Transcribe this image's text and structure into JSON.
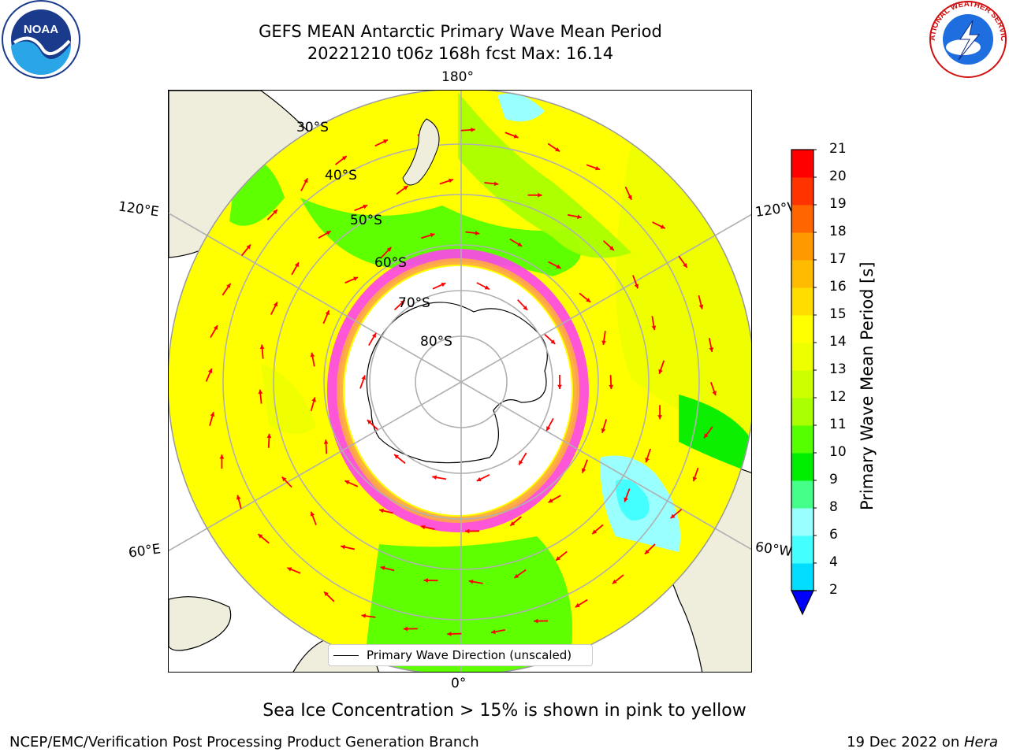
{
  "header": {
    "title_line1": "GEFS MEAN Antarctic Primary Wave Mean Period",
    "title_line2": "20221210 t06z 168h fcst   Max: 16.14"
  },
  "logos": {
    "left": "NOAA",
    "right": "NATIONAL WEATHER SERVICE"
  },
  "map": {
    "projection": "south-polar-stereographic",
    "lon_labels": {
      "top": "180°",
      "upper_left": "120°E",
      "upper_right": "120°W",
      "lower_left": "60°E",
      "lower_right": "60°W",
      "bottom": "0°"
    },
    "lat_labels": [
      "30°S",
      "40°S",
      "50°S",
      "60°S",
      "70°S",
      "80°S"
    ],
    "legend_label": "Primary Wave Direction (unscaled)",
    "colors": {
      "land": "#efeddc",
      "ice": "#ffffff",
      "arrow": "#ff0000",
      "grid": "#b0b0b0"
    }
  },
  "colorbar": {
    "label": "Primary Wave Mean Period [s]",
    "ticks": [
      "2",
      "4",
      "6",
      "8",
      "9",
      "10",
      "11",
      "12",
      "13",
      "14",
      "15",
      "16",
      "17",
      "18",
      "19",
      "20",
      "21"
    ],
    "colors": [
      "#0063ff",
      "#00ddff",
      "#44ffff",
      "#99ffff",
      "#44ff88",
      "#00ee00",
      "#55ff00",
      "#aaff00",
      "#ccff00",
      "#eeff00",
      "#ffff00",
      "#ffdd00",
      "#ffbb00",
      "#ff9900",
      "#ff6600",
      "#ff3300",
      "#ff0000"
    ],
    "under_color": "#0000ff"
  },
  "subtitle": "Sea Ice Concentration > 15% is shown in pink to yellow",
  "footer": {
    "left": "NCEP/EMC/Verification Post Processing Product Generation Branch",
    "right_prefix": "19 Dec 2022 on ",
    "right_host": "Hera"
  }
}
